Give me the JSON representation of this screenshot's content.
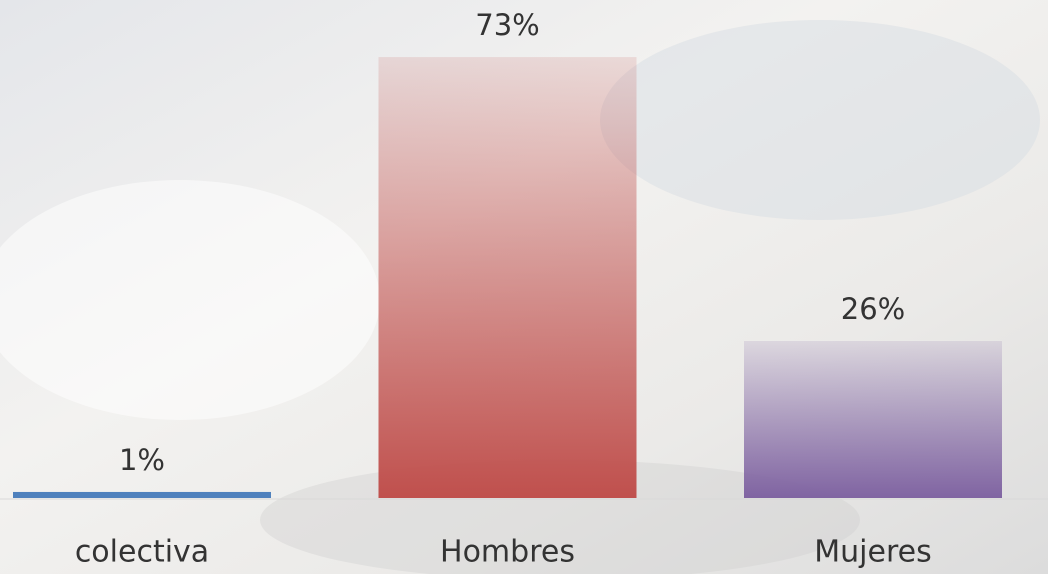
{
  "chart_data": {
    "type": "bar",
    "categories": [
      "colectiva",
      "Hombres",
      "Mujeres"
    ],
    "values": [
      1,
      73,
      26
    ],
    "value_labels": [
      "1%",
      "73%",
      "26%"
    ],
    "colors": [
      "#4f81bd",
      "#c0504d",
      "#8064a2"
    ]
  }
}
